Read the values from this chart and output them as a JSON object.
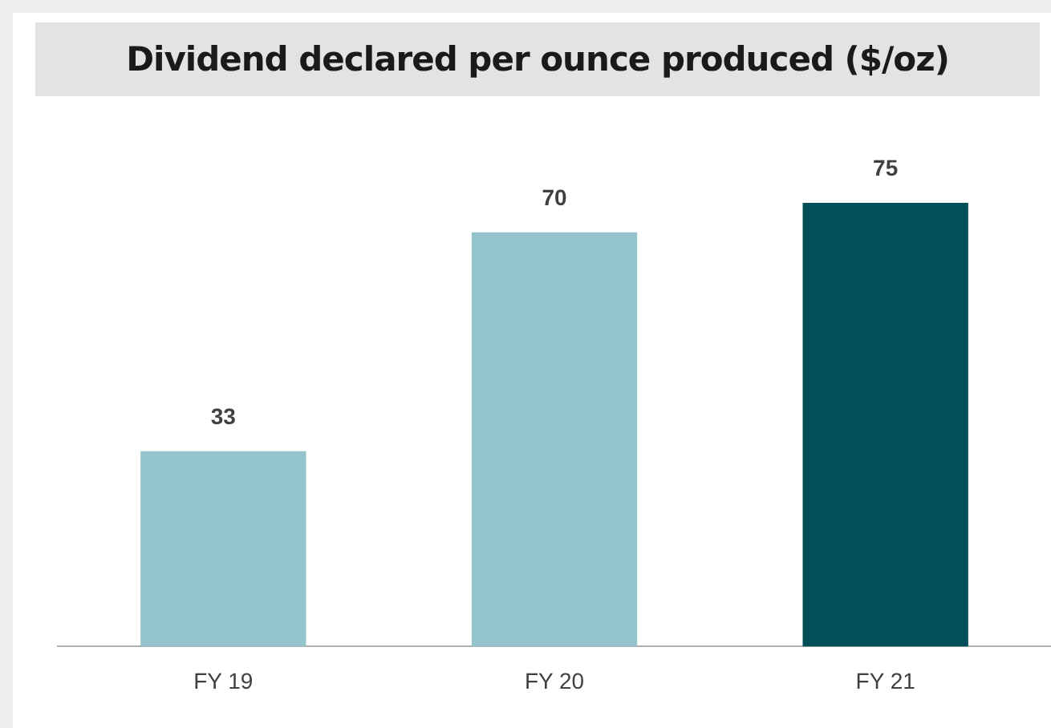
{
  "chart_data": {
    "type": "bar",
    "title": "Dividend declared per ounce produced ($/oz)",
    "categories": [
      "FY 19",
      "FY 20",
      "FY 21"
    ],
    "values": [
      33,
      70,
      75
    ],
    "colors": [
      "#93c4cb",
      "#93c4cb",
      "#004f59"
    ],
    "data_labels": true,
    "grid": false,
    "legend": false
  }
}
